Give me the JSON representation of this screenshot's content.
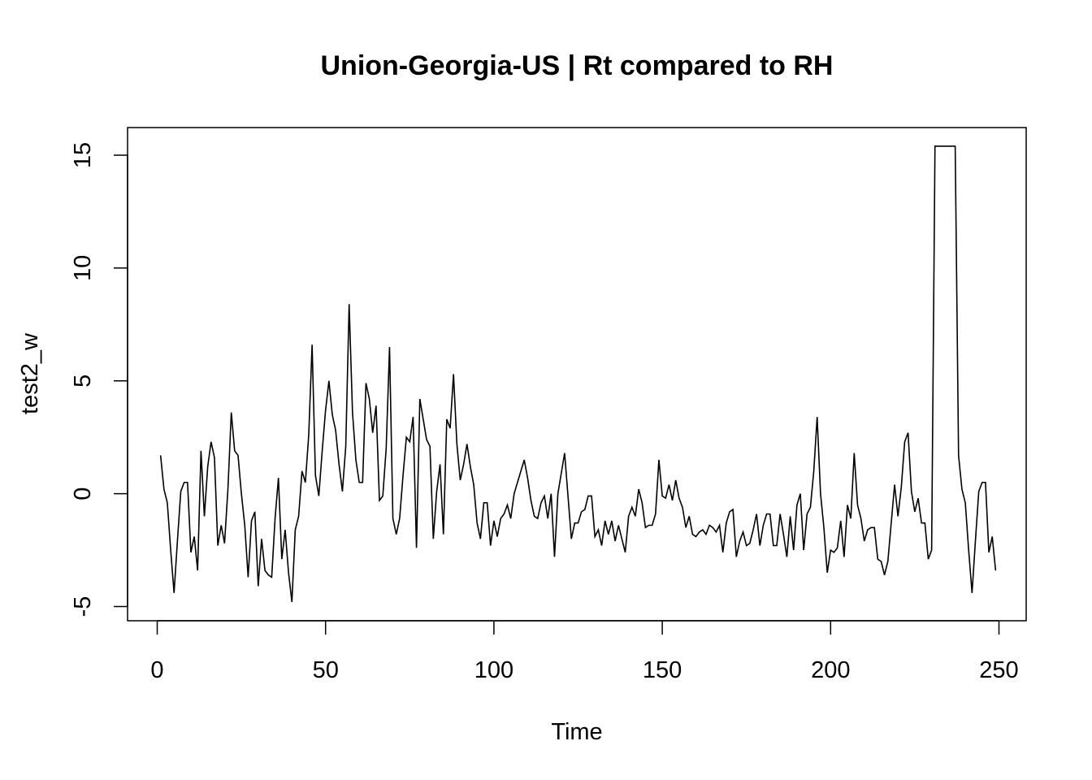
{
  "chart_data": {
    "type": "line",
    "title": "Union-Georgia-US | Rt compared to RH",
    "xlabel": "Time",
    "ylabel": "test2_w",
    "xlim": [
      1,
      248
    ],
    "ylim": [
      -5,
      15.4
    ],
    "x_ticks": [
      0,
      50,
      100,
      150,
      200,
      250
    ],
    "x_tick_labels": [
      "0",
      "50",
      "100",
      "150",
      "200",
      "250"
    ],
    "y_ticks": [
      -5,
      0,
      5,
      10,
      15
    ],
    "y_tick_labels": [
      "-5",
      "0",
      "5",
      "10",
      "15"
    ],
    "grid": false,
    "series": [
      {
        "x_start": 1,
        "values": [
          1.7,
          0.2,
          -0.4,
          -2.5,
          -4.4,
          -2.1,
          0.1,
          0.5,
          0.5,
          -2.6,
          -1.9,
          -3.4,
          1.9,
          -1.0,
          1.2,
          2.3,
          1.6,
          -2.3,
          -1.4,
          -2.2,
          0.2,
          3.6,
          1.9,
          1.7,
          0.0,
          -1.4,
          -3.7,
          -1.2,
          -0.8,
          -4.1,
          -2.0,
          -3.4,
          -3.6,
          -3.7,
          -1.1,
          0.7,
          -2.9,
          -1.6,
          -3.5,
          -4.8,
          -1.6,
          -1.0,
          1.0,
          0.5,
          2.6,
          6.6,
          0.8,
          -0.1,
          1.9,
          3.7,
          5.0,
          3.5,
          2.8,
          1.3,
          0.1,
          2.1,
          8.4,
          3.6,
          1.5,
          0.5,
          0.5,
          4.9,
          4.2,
          2.7,
          3.9,
          -0.3,
          -0.1,
          2.0,
          6.5,
          -1.1,
          -1.8,
          -1.1,
          0.8,
          2.5,
          2.3,
          3.4,
          -2.4,
          4.2,
          3.3,
          2.4,
          2.1,
          -2.0,
          0.1,
          1.3,
          -1.8,
          3.3,
          2.9,
          5.3,
          2.2,
          0.6,
          1.3,
          2.2,
          1.2,
          0.4,
          -1.3,
          -2.0,
          -0.4,
          -0.4,
          -2.3,
          -1.2,
          -1.9,
          -1.1,
          -0.9,
          -0.5,
          -1.1,
          0.0,
          0.5,
          1.0,
          1.5,
          0.7,
          -0.3,
          -1.0,
          -1.1,
          -0.4,
          -0.1,
          -1.1,
          0.0,
          -2.8,
          0.0,
          0.9,
          1.8,
          -0.1,
          -2.0,
          -1.3,
          -1.3,
          -0.8,
          -0.7,
          -0.1,
          -0.1,
          -1.9,
          -1.6,
          -2.3,
          -1.2,
          -1.8,
          -1.2,
          -2.1,
          -1.4,
          -2.0,
          -2.6,
          -1.0,
          -0.6,
          -1.0,
          0.2,
          -0.4,
          -1.5,
          -1.4,
          -1.4,
          -0.9,
          1.5,
          -0.1,
          -0.2,
          0.4,
          -0.3,
          0.6,
          -0.2,
          -0.6,
          -1.5,
          -1.0,
          -1.8,
          -1.9,
          -1.7,
          -1.6,
          -1.8,
          -1.4,
          -1.5,
          -1.7,
          -1.4,
          -2.6,
          -1.3,
          -0.8,
          -0.7,
          -2.8,
          -2.1,
          -1.7,
          -2.3,
          -2.2,
          -1.6,
          -0.9,
          -2.3,
          -1.4,
          -0.9,
          -0.9,
          -2.3,
          -2.3,
          -0.9,
          -1.8,
          -2.8,
          -1.0,
          -2.5,
          -0.5,
          0.0,
          -2.5,
          -0.9,
          -0.6,
          1.0,
          3.4,
          0.0,
          -1.5,
          -3.5,
          -2.5,
          -2.6,
          -2.4,
          -1.2,
          -2.8,
          -0.5,
          -1.1,
          1.8,
          -0.5,
          -1.1,
          -2.1,
          -1.6,
          -1.5,
          -1.5,
          -2.9,
          -3.0,
          -3.6,
          -3.0,
          -1.3,
          0.4,
          -1.0,
          0.3,
          2.3,
          2.7,
          0.1,
          -0.8,
          -0.2,
          -1.3,
          -1.3,
          -2.9,
          -2.5,
          15.4,
          15.4,
          15.4,
          15.4,
          15.4,
          15.4,
          15.4,
          1.7,
          0.2,
          -0.4,
          -2.5,
          -4.4,
          -2.1,
          0.1,
          0.5,
          0.5,
          -2.6,
          -1.9,
          -3.4
        ]
      }
    ]
  }
}
